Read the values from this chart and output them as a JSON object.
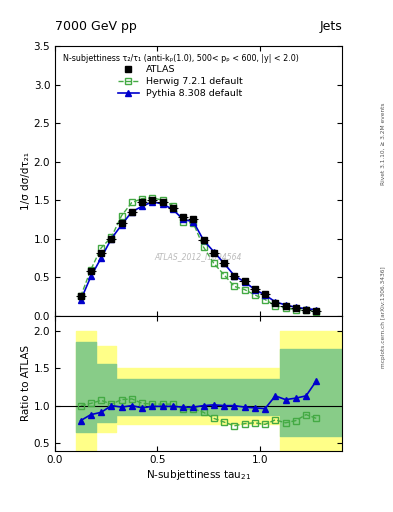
{
  "title_left": "7000 GeV pp",
  "title_right": "Jets",
  "right_label1": "Rivet 3.1.10, ≥ 3.2M events",
  "right_label2": "mcplots.cern.ch [arXiv:1306.3436]",
  "watermark": "ATLAS_2012_I1094564",
  "legend_title": "N-subjettiness τ₂/τ₁ (anti-kₚ(1.0), 500< pₚ < 600, |y| < 2.0)",
  "ylabel_main": "1/σ dσ/dτ₂₁",
  "ylabel_ratio": "Ratio to ATLAS",
  "xlim": [
    0,
    1.4
  ],
  "ylim_main": [
    0,
    3.5
  ],
  "ylim_ratio": [
    0.4,
    2.2
  ],
  "ratio_yticks": [
    0.5,
    1.0,
    1.5,
    2.0
  ],
  "main_yticks": [
    0,
    0.5,
    1.0,
    1.5,
    2.0,
    2.5,
    3.0,
    3.5
  ],
  "atlas_x": [
    0.125,
    0.175,
    0.225,
    0.275,
    0.325,
    0.375,
    0.425,
    0.475,
    0.525,
    0.575,
    0.625,
    0.675,
    0.725,
    0.775,
    0.825,
    0.875,
    0.925,
    0.975,
    1.025,
    1.075,
    1.125,
    1.175,
    1.225,
    1.275
  ],
  "atlas_y": [
    0.25,
    0.58,
    0.82,
    1.0,
    1.2,
    1.35,
    1.47,
    1.5,
    1.47,
    1.4,
    1.28,
    1.25,
    0.98,
    0.82,
    0.68,
    0.52,
    0.45,
    0.35,
    0.28,
    0.16,
    0.13,
    0.1,
    0.08,
    0.06
  ],
  "atlas_xerr": 0.025,
  "herwig_x": [
    0.125,
    0.175,
    0.225,
    0.275,
    0.325,
    0.375,
    0.425,
    0.475,
    0.525,
    0.575,
    0.625,
    0.675,
    0.725,
    0.775,
    0.825,
    0.875,
    0.925,
    0.975,
    1.025,
    1.075,
    1.125,
    1.175,
    1.225,
    1.275
  ],
  "herwig_y": [
    0.25,
    0.6,
    0.88,
    1.02,
    1.3,
    1.47,
    1.52,
    1.53,
    1.5,
    1.43,
    1.22,
    1.2,
    0.89,
    0.68,
    0.53,
    0.38,
    0.34,
    0.27,
    0.21,
    0.13,
    0.1,
    0.08,
    0.07,
    0.05
  ],
  "herwig_color": "#44aa44",
  "pythia_x": [
    0.125,
    0.175,
    0.225,
    0.275,
    0.325,
    0.375,
    0.425,
    0.475,
    0.525,
    0.575,
    0.625,
    0.675,
    0.725,
    0.775,
    0.825,
    0.875,
    0.925,
    0.975,
    1.025,
    1.075,
    1.125,
    1.175,
    1.225,
    1.275
  ],
  "pythia_y": [
    0.2,
    0.51,
    0.75,
    1.0,
    1.18,
    1.35,
    1.42,
    1.48,
    1.45,
    1.38,
    1.25,
    1.22,
    0.98,
    0.83,
    0.68,
    0.52,
    0.44,
    0.34,
    0.27,
    0.18,
    0.14,
    0.11,
    0.09,
    0.08
  ],
  "pythia_color": "#0000cc",
  "herwig_ratio": [
    1.0,
    1.03,
    1.07,
    1.02,
    1.08,
    1.09,
    1.03,
    1.02,
    1.02,
    1.02,
    0.95,
    0.96,
    0.91,
    0.83,
    0.78,
    0.73,
    0.76,
    0.77,
    0.75,
    0.81,
    0.77,
    0.8,
    0.88,
    0.83
  ],
  "pythia_ratio": [
    0.8,
    0.88,
    0.91,
    1.0,
    0.98,
    1.0,
    0.97,
    0.99,
    0.99,
    0.99,
    0.98,
    0.98,
    1.0,
    1.01,
    1.0,
    1.0,
    0.98,
    0.97,
    0.96,
    1.13,
    1.08,
    1.1,
    1.13,
    1.33
  ],
  "yellow_x_edges": [
    0.1,
    0.2,
    0.3,
    0.6,
    0.8,
    1.1,
    1.4
  ],
  "yellow_lo": [
    0.35,
    0.65,
    0.75,
    0.75,
    0.75,
    0.4,
    0.4
  ],
  "yellow_hi": [
    2.0,
    1.8,
    1.5,
    1.5,
    1.5,
    2.0,
    2.0
  ],
  "green_x_edges": [
    0.1,
    0.2,
    0.3,
    0.6,
    0.8,
    1.1,
    1.4
  ],
  "green_lo": [
    0.65,
    0.78,
    0.88,
    0.88,
    0.88,
    0.6,
    0.6
  ],
  "green_hi": [
    1.85,
    1.55,
    1.35,
    1.35,
    1.35,
    1.75,
    1.75
  ],
  "background_color": "#ffffff"
}
